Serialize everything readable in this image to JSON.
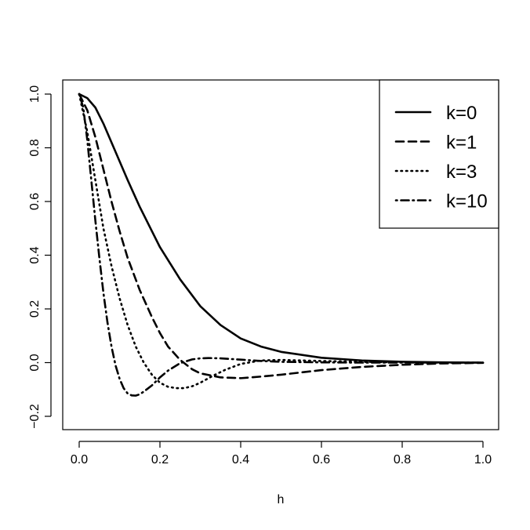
{
  "chart_data": {
    "type": "line",
    "xlabel": "h",
    "ylabel": "",
    "xlim": [
      0.0,
      1.0
    ],
    "ylim": [
      -0.2,
      1.0
    ],
    "x_ticks": [
      "0.0",
      "0.2",
      "0.4",
      "0.6",
      "0.8",
      "1.0"
    ],
    "y_ticks": [
      "−0.2",
      "0.0",
      "0.2",
      "0.4",
      "0.6",
      "0.8",
      "1.0"
    ],
    "grid": false,
    "legend_position": "top-right",
    "series": [
      {
        "name": "k=0",
        "line_style": "solid",
        "x": [
          0.0,
          0.02,
          0.04,
          0.06,
          0.08,
          0.1,
          0.12,
          0.15,
          0.18,
          0.2,
          0.25,
          0.3,
          0.35,
          0.4,
          0.45,
          0.5,
          0.6,
          0.7,
          0.8,
          0.9,
          1.0
        ],
        "y": [
          1.0,
          0.985,
          0.95,
          0.89,
          0.82,
          0.75,
          0.68,
          0.58,
          0.49,
          0.43,
          0.31,
          0.21,
          0.14,
          0.09,
          0.06,
          0.04,
          0.018,
          0.008,
          0.003,
          0.001,
          0.0
        ]
      },
      {
        "name": "k=1",
        "line_style": "dashed",
        "x": [
          0.0,
          0.02,
          0.04,
          0.06,
          0.08,
          0.1,
          0.12,
          0.15,
          0.18,
          0.2,
          0.22,
          0.25,
          0.28,
          0.3,
          0.35,
          0.4,
          0.45,
          0.5,
          0.6,
          0.7,
          0.8,
          0.9,
          1.0
        ],
        "y": [
          1.0,
          0.94,
          0.84,
          0.72,
          0.6,
          0.49,
          0.39,
          0.27,
          0.17,
          0.11,
          0.06,
          0.01,
          -0.025,
          -0.04,
          -0.055,
          -0.058,
          -0.052,
          -0.045,
          -0.028,
          -0.016,
          -0.008,
          -0.003,
          -0.001
        ]
      },
      {
        "name": "k=3",
        "line_style": "dotted",
        "x": [
          0.0,
          0.02,
          0.04,
          0.06,
          0.08,
          0.1,
          0.12,
          0.14,
          0.16,
          0.18,
          0.2,
          0.22,
          0.24,
          0.26,
          0.28,
          0.3,
          0.33,
          0.36,
          0.4,
          0.45,
          0.5,
          0.6,
          0.7,
          0.8,
          0.9,
          1.0
        ],
        "y": [
          1.0,
          0.86,
          0.68,
          0.5,
          0.36,
          0.24,
          0.14,
          0.06,
          0.0,
          -0.045,
          -0.075,
          -0.09,
          -0.095,
          -0.095,
          -0.088,
          -0.075,
          -0.05,
          -0.028,
          -0.005,
          0.008,
          0.01,
          0.006,
          0.003,
          0.001,
          0.0,
          0.0
        ]
      },
      {
        "name": "k=10",
        "line_style": "dotdash",
        "x": [
          0.0,
          0.01,
          0.02,
          0.03,
          0.04,
          0.05,
          0.06,
          0.07,
          0.08,
          0.09,
          0.1,
          0.11,
          0.12,
          0.13,
          0.14,
          0.15,
          0.16,
          0.18,
          0.2,
          0.22,
          0.25,
          0.28,
          0.3,
          0.32,
          0.35,
          0.4,
          0.45,
          0.5,
          0.6,
          0.7,
          0.8,
          0.9,
          1.0
        ],
        "y": [
          1.0,
          0.95,
          0.83,
          0.68,
          0.53,
          0.39,
          0.26,
          0.15,
          0.06,
          -0.01,
          -0.06,
          -0.095,
          -0.115,
          -0.122,
          -0.123,
          -0.118,
          -0.108,
          -0.085,
          -0.055,
          -0.03,
          -0.002,
          0.012,
          0.016,
          0.017,
          0.016,
          0.011,
          0.006,
          0.003,
          0.001,
          0.0,
          0.0,
          0.0,
          0.0
        ]
      }
    ]
  }
}
